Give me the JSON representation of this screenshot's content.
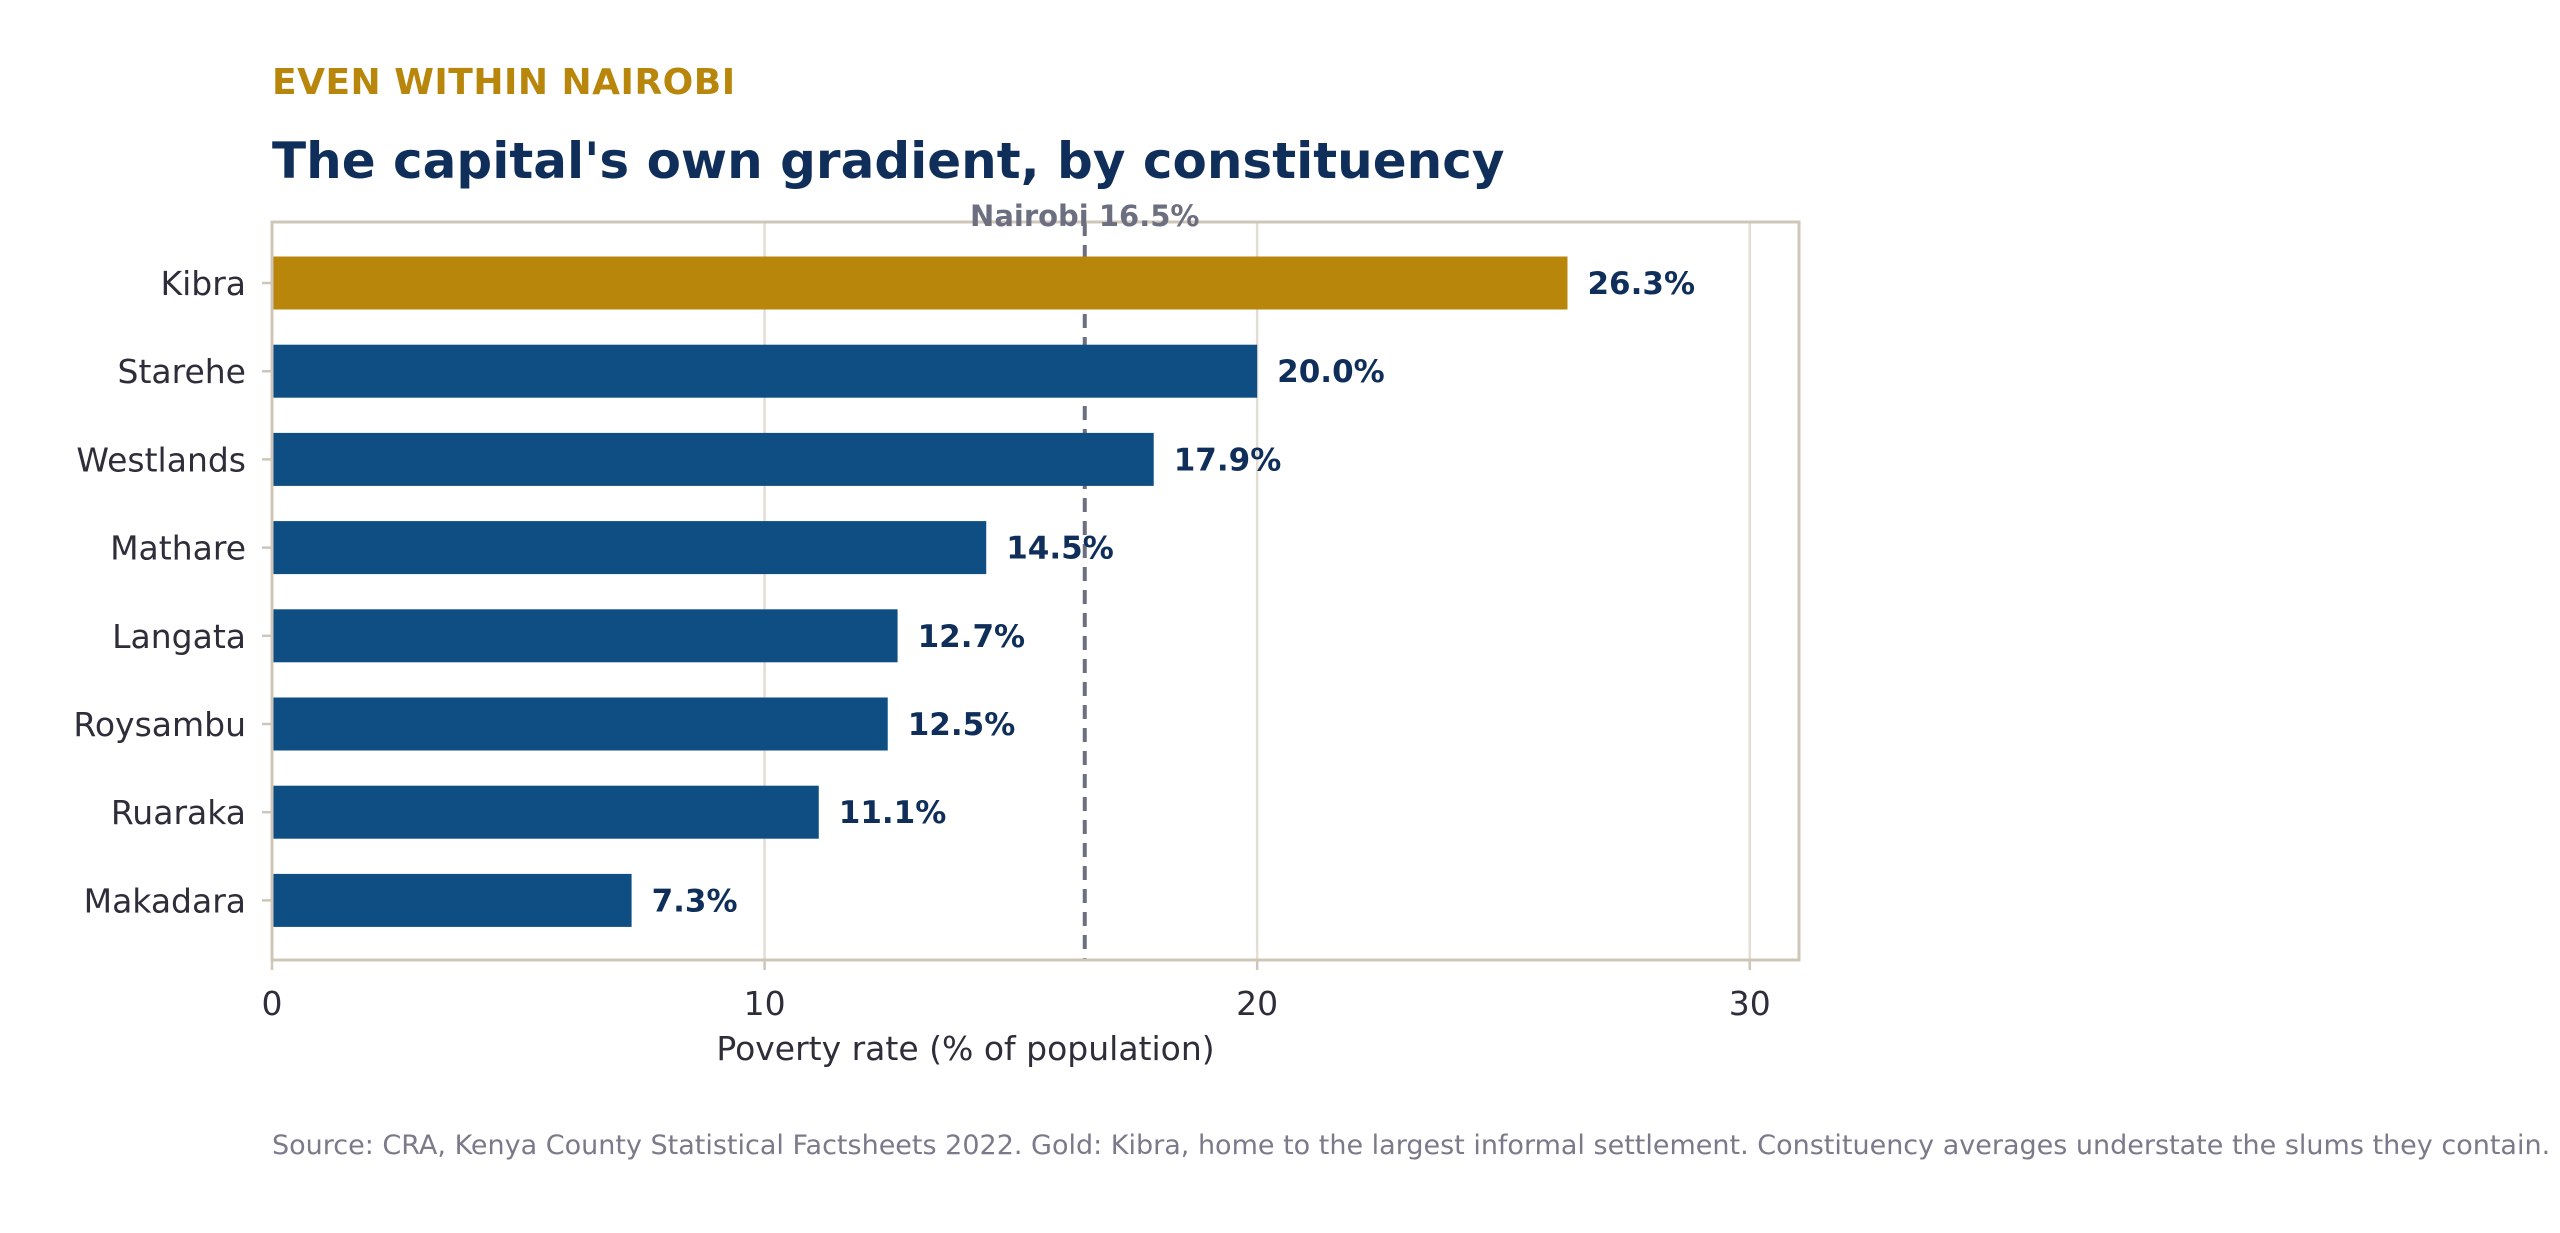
{
  "header": {
    "eyebrow": "EVEN WITHIN NAIROBI",
    "title": "The capital's own gradient, by constituency"
  },
  "footer": {
    "source": "Source: CRA, Kenya County Statistical Factsheets 2022. Gold: Kibra, home to the largest informal settlement. Constituency averages understate the slums they contain."
  },
  "colors": {
    "highlight": "#b8860b",
    "bar": "#0e4e83",
    "title": "#0f2f5a",
    "reference_line": "#6b6f80",
    "frame": "#cfc6b8",
    "grid": "#e4ddd2"
  },
  "chart_data": {
    "type": "bar",
    "orientation": "horizontal",
    "categories": [
      "Kibra",
      "Starehe",
      "Westlands",
      "Mathare",
      "Langata",
      "Roysambu",
      "Ruaraka",
      "Makadara"
    ],
    "values": [
      26.3,
      20.0,
      17.9,
      14.5,
      12.7,
      12.5,
      11.1,
      7.3
    ],
    "value_labels": [
      "26.3%",
      "20.0%",
      "17.9%",
      "14.5%",
      "12.7%",
      "12.5%",
      "11.1%",
      "7.3%"
    ],
    "highlight_category": "Kibra",
    "xlabel": "Poverty rate (% of population)",
    "xlim": [
      0,
      31
    ],
    "xticks": [
      0,
      10,
      20,
      30
    ],
    "xtick_labels": [
      "0",
      "10",
      "20",
      "30"
    ],
    "grid": true,
    "reference_line": {
      "value": 16.5,
      "label": "Nairobi 16.5%",
      "style": "dashed"
    }
  }
}
